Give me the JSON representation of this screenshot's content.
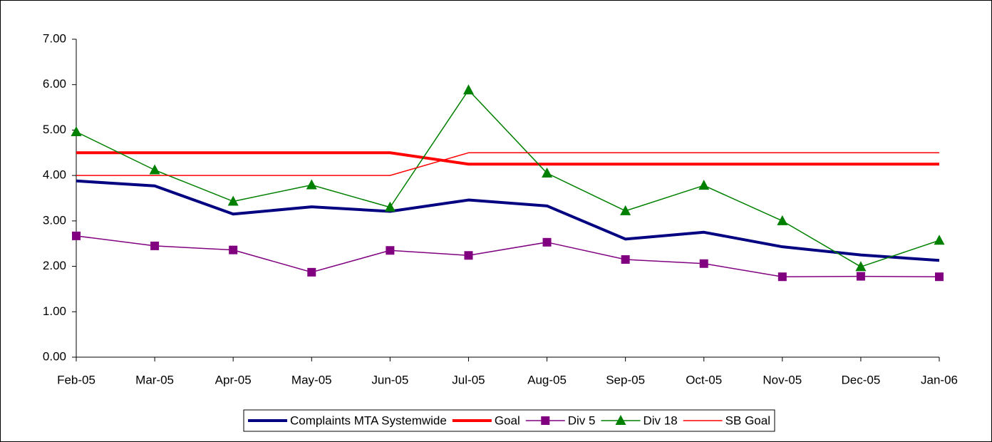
{
  "chart_data": {
    "type": "line",
    "categories": [
      "Feb-05",
      "Mar-05",
      "Apr-05",
      "May-05",
      "Jun-05",
      "Jul-05",
      "Aug-05",
      "Sep-05",
      "Oct-05",
      "Nov-05",
      "Dec-05",
      "Jan-06"
    ],
    "series": [
      {
        "name": "Complaints MTA Systemwide",
        "color": "#000080",
        "line_width": 4,
        "marker": null,
        "values": [
          3.88,
          3.77,
          3.15,
          3.31,
          3.21,
          3.46,
          3.33,
          2.6,
          2.75,
          2.43,
          2.25,
          2.13
        ]
      },
      {
        "name": "Goal",
        "color": "#ff0000",
        "line_width": 4,
        "marker": null,
        "values": [
          4.5,
          4.5,
          4.5,
          4.5,
          4.5,
          4.25,
          4.25,
          4.25,
          4.25,
          4.25,
          4.25,
          4.25
        ]
      },
      {
        "name": "Div 5",
        "color": "#800080",
        "line_width": 1.5,
        "marker": "square",
        "values": [
          2.67,
          2.45,
          2.36,
          1.87,
          2.35,
          2.24,
          2.53,
          2.15,
          2.06,
          1.77,
          1.78,
          1.77
        ]
      },
      {
        "name": "Div 18",
        "color": "#008000",
        "line_width": 1.5,
        "marker": "triangle",
        "values": [
          4.96,
          4.12,
          3.43,
          3.79,
          3.3,
          5.88,
          4.05,
          3.22,
          3.78,
          3.0,
          1.99,
          2.57
        ]
      },
      {
        "name": "SB Goal",
        "color": "#ff0000",
        "line_width": 1.5,
        "marker": null,
        "values": [
          4.0,
          4.0,
          4.0,
          4.0,
          4.0,
          4.5,
          4.5,
          4.5,
          4.5,
          4.5,
          4.5,
          4.5
        ]
      }
    ],
    "ylim": [
      0,
      7
    ],
    "yticks": [
      {
        "value": 0,
        "label": "0.00"
      },
      {
        "value": 1,
        "label": "1.00"
      },
      {
        "value": 2,
        "label": "2.00"
      },
      {
        "value": 3,
        "label": "3.00"
      },
      {
        "value": 4,
        "label": "4.00"
      },
      {
        "value": 5,
        "label": "5.00"
      },
      {
        "value": 6,
        "label": "6.00"
      },
      {
        "value": 7,
        "label": "7.00"
      }
    ],
    "grid": false,
    "legend": "bottom"
  }
}
